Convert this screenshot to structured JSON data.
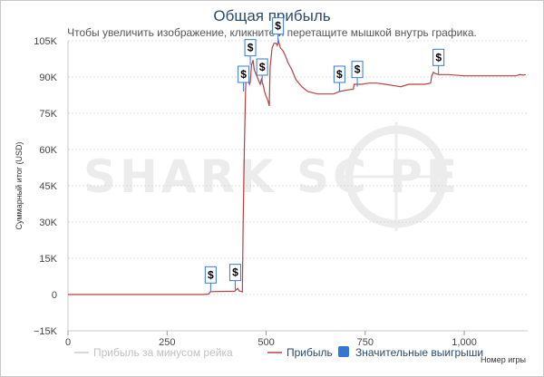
{
  "chart_data": {
    "type": "line",
    "title": "Общая прибыль",
    "subtitle": "Чтобы увеличить изображение, кликните и перетащите мышкой внутрь графика.",
    "xlabel": "Номер игры",
    "ylabel": "Суммарный итог (USD)",
    "xlim": [
      0,
      1160
    ],
    "ylim": [
      -15000,
      105000
    ],
    "x_ticks": [
      0,
      250,
      500,
      750,
      1000
    ],
    "x_tick_labels": [
      "0",
      "250",
      "500",
      "750",
      "1,000"
    ],
    "y_ticks": [
      -15000,
      0,
      15000,
      30000,
      45000,
      60000,
      75000,
      90000,
      105000
    ],
    "y_tick_labels": [
      "−15K",
      "0",
      "15K",
      "30K",
      "45K",
      "60K",
      "75K",
      "90K",
      "105K"
    ],
    "grid": true,
    "legend_position": "bottom",
    "series": [
      {
        "name": "Прибыль",
        "color": "#b84040",
        "points": [
          [
            0,
            0
          ],
          [
            50,
            0
          ],
          [
            100,
            0
          ],
          [
            150,
            0
          ],
          [
            200,
            0
          ],
          [
            250,
            0
          ],
          [
            300,
            0
          ],
          [
            340,
            0
          ],
          [
            355,
            200
          ],
          [
            358,
            1000
          ],
          [
            362,
            1200
          ],
          [
            400,
            1300
          ],
          [
            420,
            1300
          ],
          [
            428,
            2500
          ],
          [
            432,
            1500
          ],
          [
            438,
            1200
          ],
          [
            440,
            1100
          ],
          [
            442,
            30000
          ],
          [
            445,
            60000
          ],
          [
            448,
            84000
          ],
          [
            450,
            92000
          ],
          [
            454,
            89000
          ],
          [
            458,
            87000
          ],
          [
            460,
            88000
          ],
          [
            463,
            95000
          ],
          [
            467,
            97000
          ],
          [
            470,
            93000
          ],
          [
            475,
            91000
          ],
          [
            480,
            89000
          ],
          [
            485,
            87000
          ],
          [
            488,
            89000
          ],
          [
            492,
            87000
          ],
          [
            496,
            84000
          ],
          [
            500,
            82000
          ],
          [
            505,
            80000
          ],
          [
            508,
            78000
          ],
          [
            510,
            94000
          ],
          [
            515,
            102000
          ],
          [
            520,
            104000
          ],
          [
            525,
            104000
          ],
          [
            528,
            103000
          ],
          [
            531,
            105000
          ],
          [
            536,
            102000
          ],
          [
            542,
            101000
          ],
          [
            548,
            99000
          ],
          [
            555,
            96000
          ],
          [
            565,
            93000
          ],
          [
            575,
            89000
          ],
          [
            590,
            86000
          ],
          [
            605,
            84000
          ],
          [
            630,
            83000
          ],
          [
            650,
            83000
          ],
          [
            670,
            83000
          ],
          [
            685,
            84000
          ],
          [
            700,
            84500
          ],
          [
            720,
            85000
          ],
          [
            722,
            87000
          ],
          [
            740,
            87000
          ],
          [
            760,
            87500
          ],
          [
            780,
            87500
          ],
          [
            800,
            87000
          ],
          [
            820,
            86500
          ],
          [
            840,
            86000
          ],
          [
            860,
            87000
          ],
          [
            880,
            87000
          ],
          [
            900,
            87000
          ],
          [
            915,
            87500
          ],
          [
            918,
            90500
          ],
          [
            922,
            92000
          ],
          [
            926,
            91500
          ],
          [
            935,
            91000
          ],
          [
            960,
            91000
          ],
          [
            1000,
            90500
          ],
          [
            1050,
            90500
          ],
          [
            1100,
            90500
          ],
          [
            1130,
            90500
          ],
          [
            1140,
            91000
          ],
          [
            1150,
            90800
          ],
          [
            1155,
            91000
          ]
        ]
      },
      {
        "name": "Прибыль за минусом рейка",
        "color": "#cccccc",
        "visible": false,
        "points": []
      },
      {
        "name": "Значительные выигрыши",
        "color": "#3478d4",
        "marker": "$",
        "points": [
          [
            360,
            1000
          ],
          [
            422,
            2000
          ],
          [
            443,
            84000
          ],
          [
            460,
            95000
          ],
          [
            490,
            87000
          ],
          [
            530,
            104000
          ],
          [
            685,
            84000
          ],
          [
            730,
            86000
          ],
          [
            935,
            91000
          ]
        ]
      }
    ],
    "legend": [
      {
        "name": "Прибыль за минусом рейка",
        "color": "#cccccc",
        "style": "line",
        "active": false
      },
      {
        "name": "Прибыль",
        "color": "#b84040",
        "style": "line",
        "active": true
      },
      {
        "name": "Значительные выигрыши",
        "color": "#3478d4",
        "style": "box",
        "active": true
      }
    ],
    "watermark": "SHARKSCOPE"
  }
}
